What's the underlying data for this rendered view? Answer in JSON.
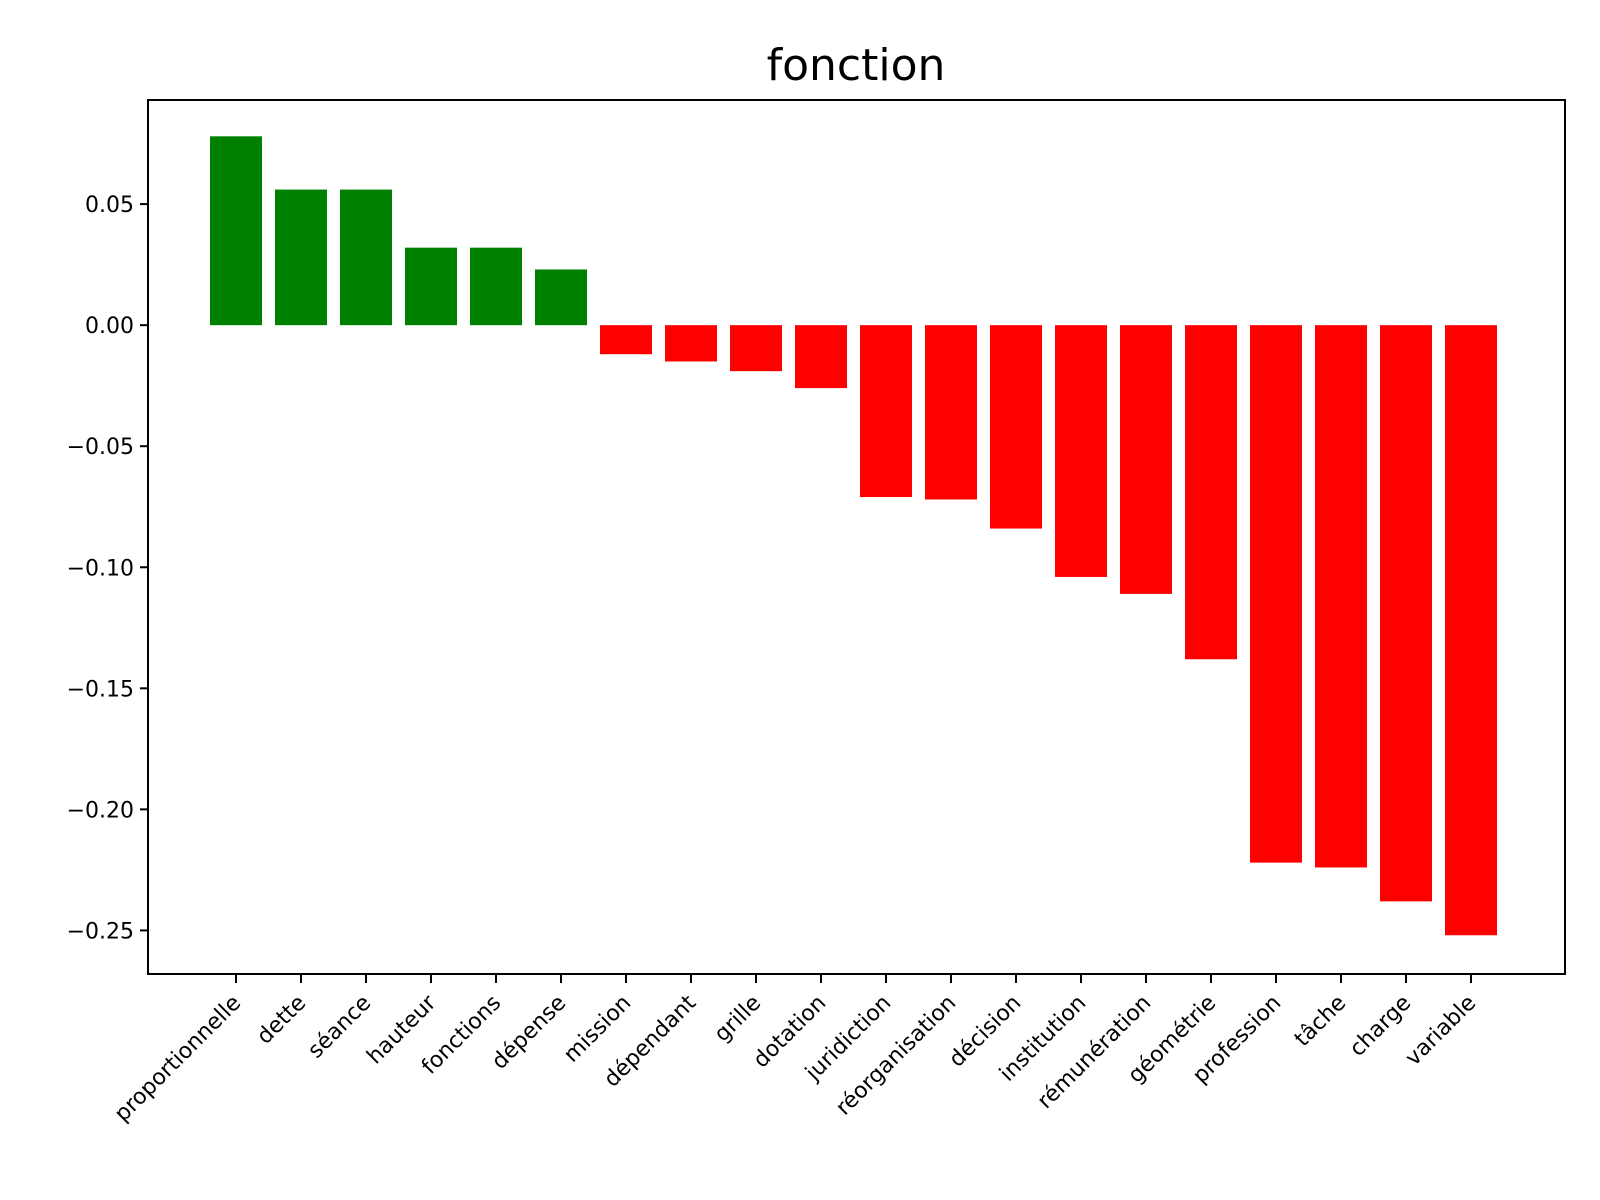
{
  "chart_data": {
    "type": "bar",
    "title": "fonction",
    "xlabel": "",
    "ylabel": "",
    "categories": [
      "proportionnelle",
      "dette",
      "séance",
      "hauteur",
      "fonctions",
      "dépense",
      "mission",
      "dépendant",
      "grille",
      "dotation",
      "juridiction",
      "réorganisation",
      "décision",
      "institution",
      "rémunération",
      "géométrie",
      "profession",
      "tâche",
      "charge",
      "variable"
    ],
    "values": [
      0.078,
      0.056,
      0.056,
      0.032,
      0.032,
      0.023,
      -0.012,
      -0.015,
      -0.019,
      -0.026,
      -0.071,
      -0.072,
      -0.084,
      -0.104,
      -0.111,
      -0.138,
      -0.222,
      -0.224,
      -0.238,
      -0.252
    ],
    "ylim": [
      -0.268,
      0.093
    ],
    "yticks": [
      0.05,
      0.0,
      -0.05,
      -0.1,
      -0.15,
      -0.2,
      -0.25
    ],
    "ytick_labels": [
      "0.05",
      "0.00",
      "−0.05",
      "−0.10",
      "−0.15",
      "−0.20",
      "−0.25"
    ],
    "colors": {
      "positive": "#008000",
      "negative": "#ff0000"
    },
    "grid": false,
    "legend": "none"
  }
}
